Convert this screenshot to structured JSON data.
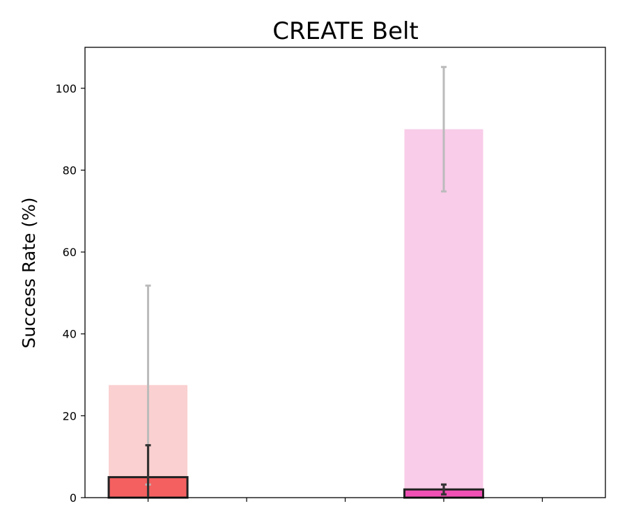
{
  "chart_data": {
    "type": "bar",
    "title": "CREATE Belt",
    "xlabel": "",
    "ylabel": "Success Rate (%)",
    "ylim": [
      0,
      110
    ],
    "yticks": [
      0,
      20,
      40,
      60,
      80,
      100
    ],
    "grid": false,
    "legend": "none",
    "categories": [
      "",
      "",
      "",
      "",
      ""
    ],
    "series": [
      {
        "values": [
          27.5,
          0,
          0,
          90,
          0
        ],
        "errors": [
          24.3,
          0,
          0,
          15.2,
          0
        ],
        "colors": [
          "#fbd0d0",
          "#fbd0d0",
          "#fbd0d0",
          "#f9cce9",
          "#f9cce9"
        ],
        "error_color": "#bbbbbb",
        "outlined": false
      },
      {
        "values": [
          5,
          0,
          0,
          2,
          0
        ],
        "errors": [
          7.8,
          0,
          0,
          1.2,
          0
        ],
        "colors": [
          "#f46060",
          "#f46060",
          "#f46060",
          "#f050b4",
          "#f050b4"
        ],
        "error_color": "#333333",
        "outlined": true
      }
    ]
  }
}
